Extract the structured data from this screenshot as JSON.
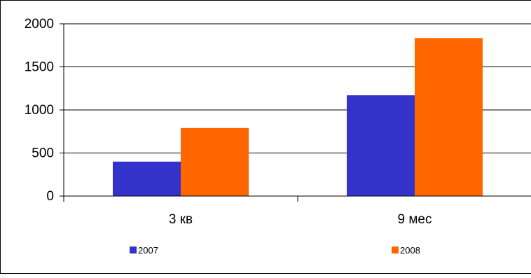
{
  "chart_data": {
    "type": "bar",
    "categories": [
      "3 кв",
      "9 мес"
    ],
    "series": [
      {
        "name": "2007",
        "values": [
          400,
          1170
        ],
        "color": "#3333CC"
      },
      {
        "name": "2008",
        "values": [
          790,
          1835
        ],
        "color": "#FF6600"
      }
    ],
    "y_ticks": [
      "0",
      "500",
      "1000",
      "1500",
      "2000"
    ],
    "ylim": [
      0,
      2000
    ],
    "grid": true,
    "gridline_color": "#000000",
    "legend_position": "bottom",
    "title": "",
    "xlabel": "",
    "ylabel": ""
  }
}
